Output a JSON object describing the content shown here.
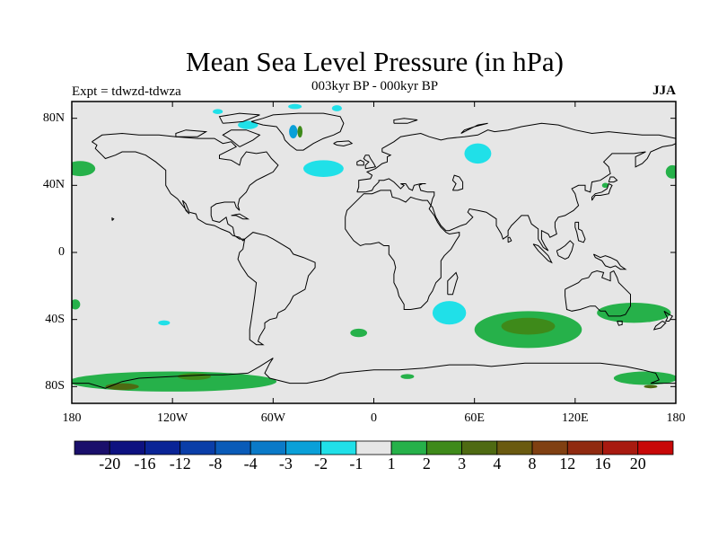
{
  "title": "Mean Sea Level Pressure (in hPa)",
  "subtitle": "003kyr BP - 000kyr BP",
  "expt_label": "Expt = tdwzd-tdwza",
  "season": "JJA",
  "map": {
    "projection": "cylindrical equidistant",
    "lon_range": [
      -180,
      180
    ],
    "lat_range": [
      -90,
      90
    ],
    "background_color": "#e6e6e6",
    "coastline_color": "#000000",
    "lat_ticks": [
      {
        "value": 80,
        "label": "80N"
      },
      {
        "value": 40,
        "label": "40N"
      },
      {
        "value": 0,
        "label": "0"
      },
      {
        "value": -40,
        "label": "40S"
      },
      {
        "value": -80,
        "label": "80S"
      }
    ],
    "lon_ticks": [
      {
        "value": -180,
        "label": "180"
      },
      {
        "value": -120,
        "label": "120W"
      },
      {
        "value": -60,
        "label": "60W"
      },
      {
        "value": 0,
        "label": "0"
      },
      {
        "value": 60,
        "label": "60E"
      },
      {
        "value": 120,
        "label": "120E"
      },
      {
        "value": 180,
        "label": "180"
      }
    ],
    "anomaly_regions": [
      {
        "name": "north-atlantic-low",
        "lon": -30,
        "lat": 50,
        "rlon": 12,
        "rlat": 5,
        "level": -1
      },
      {
        "name": "siberia-low",
        "lon": 62,
        "lat": 59,
        "rlon": 8,
        "rlat": 6,
        "level": -1
      },
      {
        "name": "south-atlantic-low",
        "lon": 45,
        "lat": -36,
        "rlon": 10,
        "rlat": 7,
        "level": -1
      },
      {
        "name": "south-pacific-low",
        "lon": -125,
        "lat": -42,
        "rlon": 3.5,
        "rlat": 1.5,
        "level": -1
      },
      {
        "name": "arctic-low-1",
        "lon": -93,
        "lat": 84,
        "rlon": 3,
        "rlat": 1.5,
        "level": -1
      },
      {
        "name": "arctic-low-2",
        "lon": -75,
        "lat": 76,
        "rlon": 6,
        "rlat": 2.5,
        "level": -1
      },
      {
        "name": "arctic-low-3",
        "lon": -22,
        "lat": 86,
        "rlon": 3,
        "rlat": 1.8,
        "level": -1
      },
      {
        "name": "arctic-low-4",
        "lon": -47,
        "lat": 87,
        "rlon": 4,
        "rlat": 1.5,
        "level": -1
      },
      {
        "name": "greenland-low",
        "lon": -48,
        "lat": 72,
        "rlon": 2.5,
        "rlat": 4,
        "level": -2
      },
      {
        "name": "greenland-high",
        "lon": -44,
        "lat": 72,
        "rlon": 1.5,
        "rlat": 3.5,
        "level": 2
      },
      {
        "name": "southern-indian-high",
        "lon": 92,
        "lat": -46,
        "rlon": 32,
        "rlat": 11,
        "level": 1
      },
      {
        "name": "southern-indian-high-core",
        "lon": 92,
        "lat": -44,
        "rlon": 16,
        "rlat": 5,
        "level": 2
      },
      {
        "name": "tasman-high",
        "lon": 155,
        "lat": -36,
        "rlon": 22,
        "rlat": 6,
        "level": 1
      },
      {
        "name": "south-atlantic-high",
        "lon": -9,
        "lat": -48,
        "rlon": 5,
        "rlat": 2.5,
        "level": 1
      },
      {
        "name": "north-pacific-high",
        "lon": -175,
        "lat": 50,
        "rlon": 9,
        "rlat": 4.5,
        "level": 1
      },
      {
        "name": "pacific-edge-high",
        "lon": 178,
        "lat": 48,
        "rlon": 4,
        "rlat": 4,
        "level": 1
      },
      {
        "name": "southern-ocean-high",
        "lon": -120,
        "lat": -77,
        "rlon": 62,
        "rlat": 6,
        "level": 1
      },
      {
        "name": "southern-ocean-core-1",
        "lon": -107,
        "lat": -74,
        "rlon": 10,
        "rlat": 2,
        "level": 2
      },
      {
        "name": "southern-ocean-core-2",
        "lon": -150,
        "lat": -80,
        "rlon": 10,
        "rlat": 2,
        "level": 3
      },
      {
        "name": "ross-sea-high",
        "lon": 162,
        "lat": -75,
        "rlon": 19,
        "rlat": 4,
        "level": 1
      },
      {
        "name": "ross-sea-core",
        "lon": 165,
        "lat": -80,
        "rlon": 4,
        "rlat": 1,
        "level": 3
      },
      {
        "name": "antarctic-coast-high",
        "lon": 20,
        "lat": -74,
        "rlon": 4,
        "rlat": 1.5,
        "level": 1
      },
      {
        "name": "south-west-atlantic-high",
        "lon": -178,
        "lat": -31,
        "rlon": 3,
        "rlat": 3,
        "level": 1
      },
      {
        "name": "japan-high",
        "lon": 138,
        "lat": 40,
        "rlon": 2,
        "rlat": 1.5,
        "level": 1
      }
    ]
  },
  "colorbar": {
    "colors": [
      "#1a0f6b",
      "#0d1180",
      "#0a2496",
      "#0a3ea8",
      "#0a5bb8",
      "#0a7ac8",
      "#0aa0d8",
      "#20e0e8",
      "#e6e6e6",
      "#26b14a",
      "#3e8a1a",
      "#4e6a12",
      "#6a5a10",
      "#804012",
      "#902a10",
      "#a81a10",
      "#c80808"
    ],
    "labels": [
      "-20",
      "-16",
      "-12",
      "-8",
      "-4",
      "-3",
      "-2",
      "-1",
      "1",
      "2",
      "3",
      "4",
      "8",
      "12",
      "16",
      "20"
    ]
  }
}
